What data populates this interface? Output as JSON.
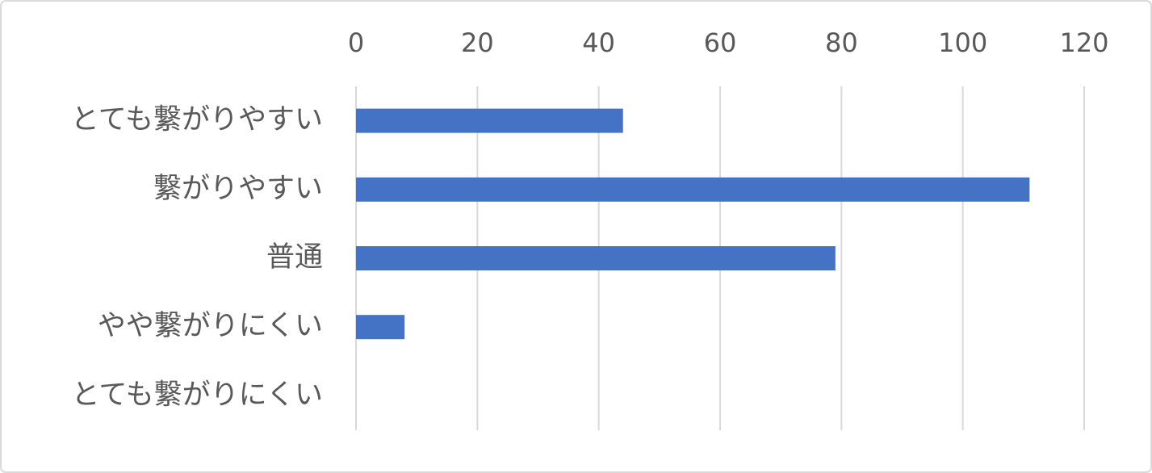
{
  "chart_data": {
    "type": "bar",
    "orientation": "horizontal",
    "categories": [
      "とても繋がりやすい",
      "繋がりやすい",
      "普通",
      "やや繋がりにくい",
      "とても繋がりにくい"
    ],
    "values": [
      44,
      111,
      79,
      8,
      0
    ],
    "color": "#4472c4",
    "xlim": [
      0,
      120
    ],
    "xticks": [
      0,
      20,
      40,
      60,
      80,
      100,
      120
    ],
    "grid": true
  }
}
